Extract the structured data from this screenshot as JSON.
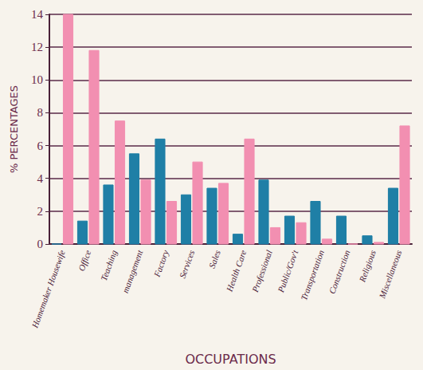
{
  "chart_data": {
    "type": "bar",
    "x_label": "OCCUPATIONS",
    "y_label": "% PERCENTAGES",
    "categories": [
      "Homemaker Housewife",
      "Office",
      "Teaching",
      "management",
      "Factory",
      "Services",
      "Sales",
      "Health Care",
      "Professional",
      "Public/Gov't",
      "Transportation",
      "Construction",
      "Religious",
      "Miscellaneous"
    ],
    "series": [
      {
        "color": "#1f7fa6",
        "values": [
          0,
          1.4,
          3.6,
          5.5,
          6.4,
          3.0,
          3.4,
          0.6,
          3.9,
          1.7,
          2.6,
          1.7,
          0.5,
          3.4
        ]
      },
      {
        "color": "#f28fb1",
        "values": [
          14,
          11.8,
          7.5,
          3.9,
          2.6,
          5.0,
          3.7,
          6.4,
          1.0,
          1.3,
          0.3,
          0,
          0.1,
          7.2
        ]
      }
    ],
    "ylim": [
      0,
      14
    ],
    "yticks": [
      0,
      2,
      4,
      6,
      8,
      10,
      12,
      14
    ],
    "grid": true
  }
}
